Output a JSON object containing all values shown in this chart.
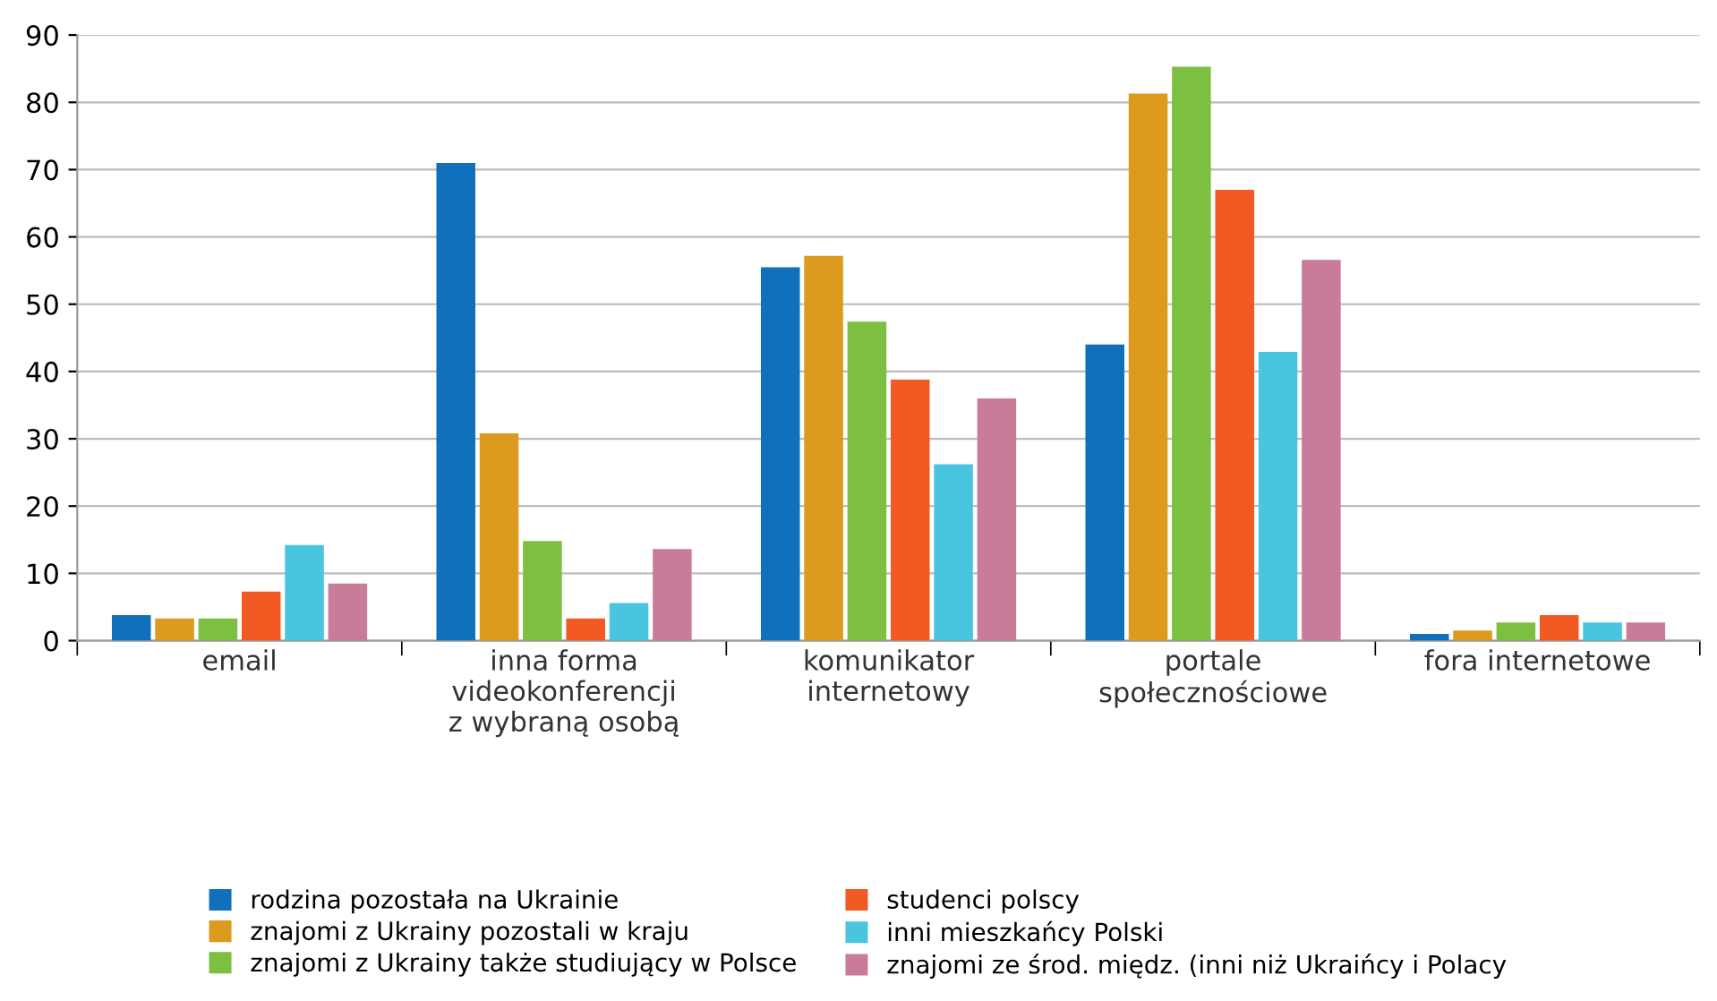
{
  "chart_data": {
    "type": "bar",
    "categories": [
      "email",
      "inna forma\nvideokonferencji\nz wybraną osobą",
      "komunikator\ninternetowy",
      "portale\nspołecznościowe",
      "fora internetowe"
    ],
    "series": [
      {
        "name": "rodzina pozostała na Ukrainie",
        "color": "#1070bb",
        "values": [
          3.8,
          71,
          55.5,
          44,
          1
        ]
      },
      {
        "name": "znajomi z Ukrainy pozostali w kraju",
        "color": "#dc9a1e",
        "values": [
          3.3,
          30.8,
          57.2,
          81.3,
          1.5
        ]
      },
      {
        "name": "znajomi z Ukrainy także studiujący w Polsce",
        "color": "#7cbf41",
        "values": [
          3.3,
          14.8,
          47.4,
          85.3,
          2.7
        ]
      },
      {
        "name": "studenci polscy",
        "color": "#f15a22",
        "values": [
          7.3,
          3.3,
          38.8,
          67,
          3.8
        ]
      },
      {
        "name": "inni mieszkańcy Polski",
        "color": "#4ac5e0",
        "values": [
          14.2,
          5.6,
          26.2,
          42.9,
          2.7
        ]
      },
      {
        "name": "znajomi ze środ. międz. (inni niż Ukraińcy i Polacy",
        "color": "#c97b9a",
        "values": [
          8.5,
          13.6,
          36.0,
          56.6,
          2.7
        ]
      }
    ],
    "ylim": [
      0,
      90
    ],
    "yticks": [
      0,
      10,
      20,
      30,
      40,
      50,
      60,
      70,
      80,
      90
    ],
    "grid": "y",
    "legend": "bottom"
  }
}
